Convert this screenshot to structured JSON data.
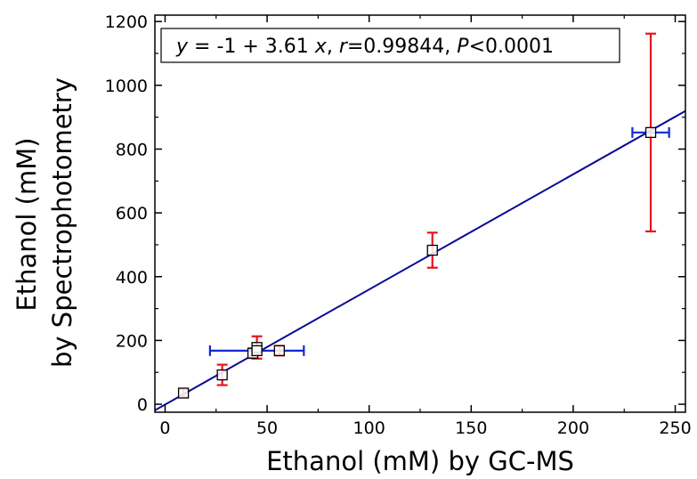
{
  "chart_data": {
    "type": "scatter",
    "title": "",
    "xlabel": "Ethanol (mM) by GC-MS",
    "ylabel_line1": "Ethanol (mM)",
    "ylabel_line2": "by Spectrophotometry",
    "xlim": [
      -5,
      255
    ],
    "ylim": [
      -25,
      1220
    ],
    "x_ticks": [
      0,
      50,
      100,
      150,
      200,
      250
    ],
    "x_tick_labels": [
      "0",
      "50",
      "100",
      "150",
      "200",
      "250"
    ],
    "y_ticks": [
      0,
      200,
      400,
      600,
      800,
      1000,
      1200
    ],
    "y_tick_labels": [
      "0",
      "200",
      "400",
      "600",
      "800",
      "1000",
      "1200"
    ],
    "grid": false,
    "annotation": {
      "y": "y",
      "eq_middle": " = -1 + 3.61 ",
      "x": "x",
      "comma1": ", ",
      "r": "r",
      "r_value": "=0.99844, ",
      "P": "P",
      "p_value": "<0.0001"
    },
    "fit": {
      "intercept": -1,
      "slope": 3.61
    },
    "points": [
      {
        "x": 9,
        "y": 35,
        "x_err": 0,
        "y_err": 12
      },
      {
        "x": 28,
        "y": 92,
        "x_err": 0,
        "y_err": 32
      },
      {
        "x": 43,
        "y": 160,
        "x_err": 0,
        "y_err": 15
      },
      {
        "x": 45,
        "y": 178,
        "x_err": 0,
        "y_err": 35
      },
      {
        "x": 45,
        "y": 168,
        "x_err": 23,
        "y_err": 0
      },
      {
        "x": 56,
        "y": 168,
        "x_err": 0,
        "y_err": 15
      },
      {
        "x": 131,
        "y": 483,
        "x_err": 0,
        "y_err": 55
      },
      {
        "x": 238,
        "y": 852,
        "x_err": 9,
        "y_err": 310
      }
    ],
    "colors": {
      "fit_line": "#0a0a96",
      "y_error": "#e8141e",
      "x_error": "#1428d2",
      "marker_edge": "#000000",
      "marker_fill": "#ffffff",
      "axis": "#000000"
    }
  }
}
